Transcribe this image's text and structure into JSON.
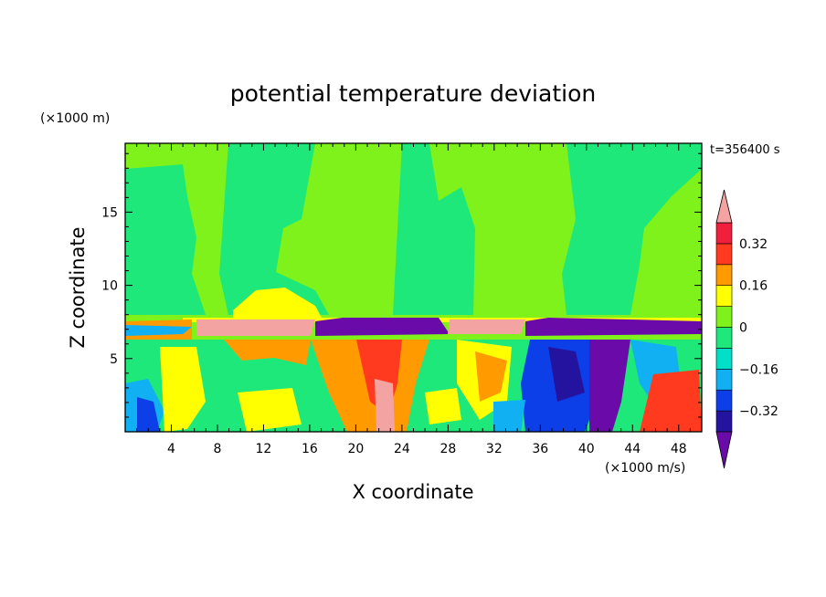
{
  "chart_data": {
    "type": "heatmap",
    "title": "potential temperature deviation",
    "xlabel": "X coordinate",
    "ylabel": "Z coordinate",
    "x_unit": "(×1000 m/s)",
    "y_unit": "(×1000 m)",
    "time_label": "t=356400 s",
    "xlim": [
      0,
      50
    ],
    "ylim": [
      0,
      19.7
    ],
    "x_ticks": [
      4,
      8,
      12,
      16,
      20,
      24,
      28,
      32,
      36,
      40,
      44,
      48
    ],
    "y_ticks": [
      5,
      10,
      15
    ],
    "colorbar": {
      "labels": [
        {
          "value": 0.32,
          "text": "0.32"
        },
        {
          "value": 0.16,
          "text": "0.16"
        },
        {
          "value": 0,
          "text": "0"
        },
        {
          "value": -0.16,
          "text": "−0.16"
        },
        {
          "value": -0.32,
          "text": "−0.32"
        }
      ],
      "levels": [
        -0.4,
        -0.32,
        -0.24,
        -0.16,
        -0.08,
        0,
        0.08,
        0.16,
        0.24,
        0.32,
        0.4
      ],
      "colors": [
        "#6a0aa8",
        "#24139e",
        "#0c3fe8",
        "#11b0f2",
        "#00e0c8",
        "#1ee87a",
        "#7ef21a",
        "#ffff00",
        "#ff9a00",
        "#ff3a1e",
        "#f0203c",
        "#f4a3a3"
      ]
    },
    "colors": {
      "band_above": "#7ef21a",
      "band_0": "#1ee87a",
      "band_pos1": "#7ef21a",
      "band_pos2": "#ffff00",
      "layer_warm": "#f4a3a3",
      "layer_cold": "#6a0aa8"
    }
  }
}
